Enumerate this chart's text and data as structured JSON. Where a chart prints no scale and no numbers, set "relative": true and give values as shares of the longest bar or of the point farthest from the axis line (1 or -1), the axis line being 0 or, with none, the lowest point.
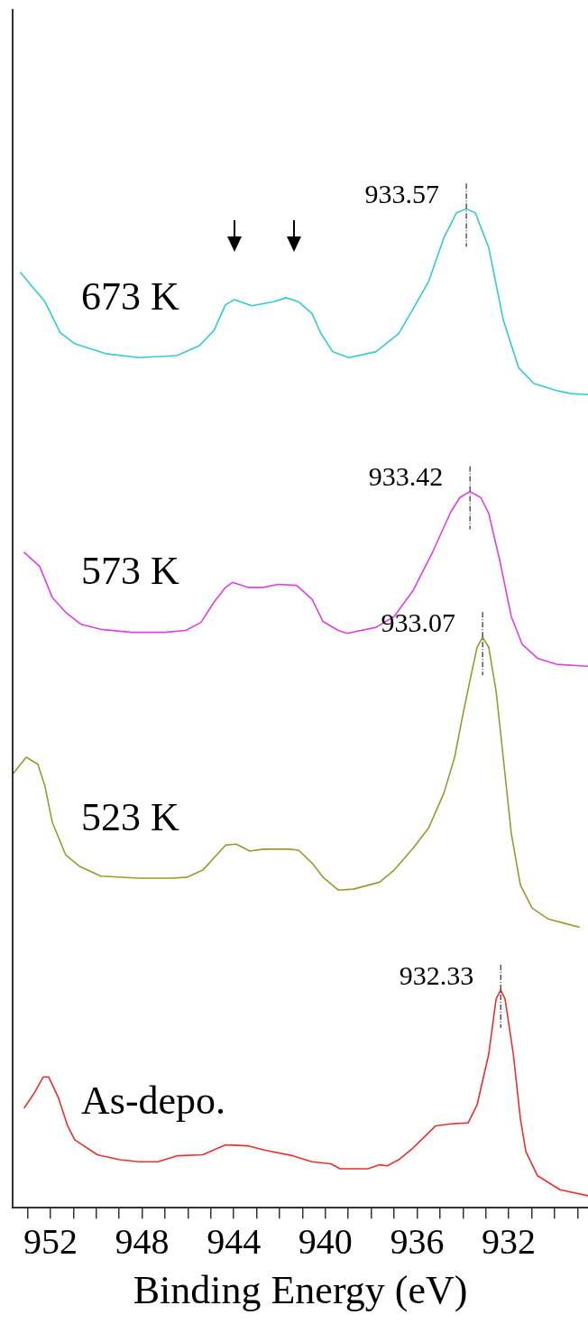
{
  "chart_data": {
    "type": "line",
    "relative": true,
    "xlabel": "Binding Energy (eV)",
    "marker": "none",
    "line_style": "solid",
    "tick_labels": "x",
    "xlim": [
      953.65,
      928.54
    ],
    "xticks": [
      {
        "value": 953,
        "label": null
      },
      952,
      {
        "value": 951,
        "label": null
      },
      {
        "value": 950,
        "label": null
      },
      {
        "value": 949,
        "label": null
      },
      948,
      {
        "value": 947,
        "label": null
      },
      {
        "value": 946,
        "label": null
      },
      {
        "value": 945,
        "label": null
      },
      944,
      {
        "value": 943,
        "label": null
      },
      {
        "value": 942,
        "label": null
      },
      {
        "value": 941,
        "label": null
      },
      940,
      {
        "value": 939,
        "label": null
      },
      {
        "value": 938,
        "label": null
      },
      {
        "value": 937,
        "label": null
      },
      936,
      {
        "value": 935,
        "label": null
      },
      {
        "value": 934,
        "label": null
      },
      {
        "value": 933,
        "label": null
      },
      932,
      {
        "value": 931,
        "label": null
      },
      {
        "value": 930,
        "label": null
      },
      {
        "value": 929,
        "label": null
      }
    ],
    "series": [
      {
        "name": "673 K",
        "color": "#33cccc",
        "x": [
          953.3,
          952.24,
          951.57,
          950.94,
          949.6,
          948.14,
          946.49,
          945.5,
          944.87,
          944.36,
          943.97,
          943.22,
          942.24,
          941.72,
          941.17,
          940.58,
          940.19,
          939.68,
          938.97,
          937.79,
          936.8,
          936.17,
          935.5,
          934.83,
          934.28,
          933.85,
          933.46,
          932.87,
          932.24,
          931.57,
          930.9,
          929.91,
          929.28,
          928.54
        ],
        "values": [
          0.936,
          0.907,
          0.876,
          0.865,
          0.855,
          0.851,
          0.853,
          0.863,
          0.878,
          0.904,
          0.909,
          0.903,
          0.907,
          0.911,
          0.907,
          0.895,
          0.875,
          0.857,
          0.851,
          0.857,
          0.875,
          0.9,
          0.927,
          0.971,
          0.996,
          1,
          0.996,
          0.961,
          0.889,
          0.841,
          0.825,
          0.818,
          0.815,
          0.814
        ]
      },
      {
        "name": "573 K",
        "color": "#e040e0",
        "x": [
          953.14,
          952.47,
          951.92,
          951.33,
          950.66,
          949.8,
          948.46,
          947.0,
          946.09,
          945.43,
          944.87,
          944.36,
          944.05,
          943.38,
          942.71,
          942.08,
          941.25,
          940.58,
          940.11,
          939.44,
          939.05,
          937.79,
          937.0,
          936.17,
          935.35,
          934.52,
          934.13,
          933.69,
          933.22,
          932.87,
          932.39,
          931.89,
          931.41,
          930.74,
          929.91,
          928.54
        ],
        "values": [
          0.656,
          0.642,
          0.611,
          0.596,
          0.584,
          0.579,
          0.576,
          0.576,
          0.578,
          0.586,
          0.606,
          0.621,
          0.626,
          0.621,
          0.621,
          0.624,
          0.623,
          0.609,
          0.587,
          0.578,
          0.575,
          0.581,
          0.592,
          0.618,
          0.655,
          0.697,
          0.711,
          0.717,
          0.711,
          0.695,
          0.648,
          0.592,
          0.564,
          0.55,
          0.544,
          0.542
        ]
      },
      {
        "name": "523 K",
        "color": "#9a9a30",
        "x": [
          953.61,
          953.06,
          952.55,
          952.24,
          951.92,
          951.33,
          950.74,
          949.8,
          948.14,
          946.65,
          946.02,
          945.35,
          944.36,
          943.89,
          943.3,
          942.71,
          941.57,
          941.17,
          940.58,
          940.11,
          939.44,
          938.77,
          937.63,
          937.0,
          936.17,
          935.5,
          934.83,
          934.36,
          934.05,
          933.69,
          933.38,
          933.14,
          932.87,
          932.55,
          932.24,
          931.89,
          931.49,
          930.98,
          930.27,
          929.44,
          928.93
        ],
        "values": [
          0.435,
          0.451,
          0.444,
          0.422,
          0.386,
          0.353,
          0.342,
          0.332,
          0.33,
          0.33,
          0.331,
          0.338,
          0.363,
          0.364,
          0.357,
          0.359,
          0.359,
          0.358,
          0.345,
          0.331,
          0.318,
          0.319,
          0.326,
          0.338,
          0.36,
          0.38,
          0.415,
          0.451,
          0.488,
          0.528,
          0.561,
          0.571,
          0.561,
          0.517,
          0.451,
          0.375,
          0.323,
          0.3,
          0.289,
          0.284,
          0.281
        ]
      },
      {
        "name": "As-depo.",
        "color": "#e83030",
        "x": [
          953.14,
          952.73,
          952.31,
          952.08,
          951.65,
          951.25,
          950.94,
          949.95,
          948.97,
          948.14,
          947.31,
          946.49,
          945.35,
          944.36,
          943.38,
          942.71,
          941.41,
          940.58,
          939.76,
          939.36,
          938.14,
          937.63,
          937.31,
          936.8,
          936.17,
          935.19,
          934.52,
          933.77,
          933.38,
          932.87,
          932.55,
          932.35,
          932.16,
          931.8,
          931.49,
          931.25,
          930.74,
          929.76,
          928.54
        ],
        "values": [
          0.1,
          0.114,
          0.131,
          0.131,
          0.11,
          0.082,
          0.068,
          0.053,
          0.048,
          0.046,
          0.046,
          0.052,
          0.053,
          0.063,
          0.062,
          0.058,
          0.052,
          0.046,
          0.044,
          0.039,
          0.039,
          0.043,
          0.042,
          0.048,
          0.06,
          0.082,
          0.084,
          0.085,
          0.103,
          0.154,
          0.209,
          0.218,
          0.209,
          0.154,
          0.089,
          0.056,
          0.032,
          0.018,
          0.012
        ]
      }
    ],
    "annotations": [
      {
        "text": "933.57",
        "x": 933.85,
        "y": 1
      },
      {
        "text": "933.42",
        "x": 933.69,
        "y": 0.717
      },
      {
        "text": "933.07",
        "x": 933.14,
        "y": 0.571
      },
      {
        "text": "932.33",
        "x": 932.35,
        "y": 0.218
      }
    ]
  }
}
